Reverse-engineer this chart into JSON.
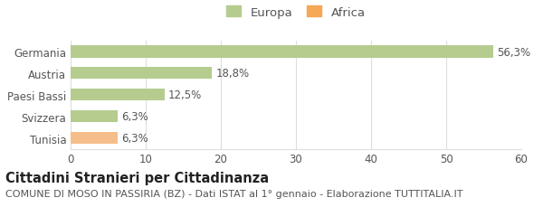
{
  "categories": [
    "Tunisia",
    "Svizzera",
    "Paesi Bassi",
    "Austria",
    "Germania"
  ],
  "values": [
    6.3,
    6.3,
    12.5,
    18.8,
    56.3
  ],
  "colors": [
    "#f5be8b",
    "#b5cc8e",
    "#b5cc8e",
    "#b5cc8e",
    "#b5cc8e"
  ],
  "labels": [
    "6,3%",
    "6,3%",
    "12,5%",
    "18,8%",
    "56,3%"
  ],
  "legend_items": [
    {
      "label": "Europa",
      "color": "#b5cc8e"
    },
    {
      "label": "Africa",
      "color": "#f5a855"
    }
  ],
  "xlim": [
    0,
    60
  ],
  "xticks": [
    0,
    10,
    20,
    30,
    40,
    50,
    60
  ],
  "title": "Cittadini Stranieri per Cittadinanza",
  "subtitle": "COMUNE DI MOSO IN PASSIRIA (BZ) - Dati ISTAT al 1° gennaio - Elaborazione TUTTITALIA.IT",
  "bg_color": "#ffffff",
  "grid_color": "#dddddd",
  "bar_height": 0.55,
  "title_fontsize": 10.5,
  "subtitle_fontsize": 8.0,
  "label_fontsize": 8.5,
  "tick_fontsize": 8.5,
  "legend_fontsize": 9.5
}
